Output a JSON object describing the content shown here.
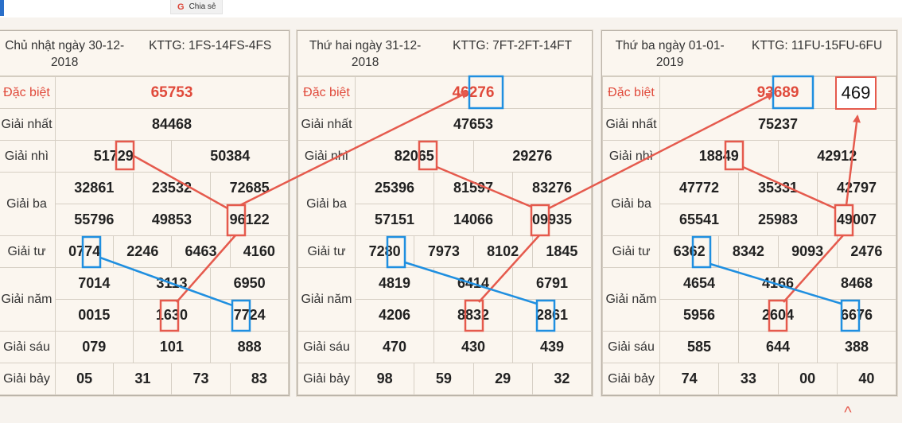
{
  "share": {
    "icon": "G",
    "label": "Chia sẻ"
  },
  "panels": [
    {
      "date": "Chủ nhật ngày 30-12-2018",
      "kttg": "KTTG: 1FS-14FS-4FS",
      "labels": {
        "db": "Đặc biệt",
        "g1": "Giải nhất",
        "g2": "Giải nhì",
        "g3": "Giải ba",
        "g4": "Giải tư",
        "g5": "Giải năm",
        "g6": "Giải sáu",
        "g7": "Giải bảy"
      },
      "db": "65753",
      "g1": "84468",
      "g2": [
        "51729",
        "50384"
      ],
      "g3": [
        "32861",
        "23532",
        "72685",
        "55796",
        "49853",
        "96122"
      ],
      "g4": [
        "0774",
        "2246",
        "6463",
        "4160"
      ],
      "g5": [
        "7014",
        "3113",
        "6950",
        "0015",
        "1630",
        "7724"
      ],
      "g6": [
        "079",
        "101",
        "888"
      ],
      "g7": [
        "05",
        "31",
        "73",
        "83"
      ]
    },
    {
      "date": "Thứ hai ngày 31-12-2018",
      "kttg": "KTTG: 7FT-2FT-14FT",
      "labels": {
        "db": "Đặc biệt",
        "g1": "Giải nhất",
        "g2": "Giải nhì",
        "g3": "Giải ba",
        "g4": "Giải tư",
        "g5": "Giải năm",
        "g6": "Giải sáu",
        "g7": "Giải bảy"
      },
      "db": "46276",
      "g1": "47653",
      "g2": [
        "82065",
        "29276"
      ],
      "g3": [
        "25396",
        "81597",
        "83276",
        "57151",
        "14066",
        "09935"
      ],
      "g4": [
        "7280",
        "7973",
        "8102",
        "1845"
      ],
      "g5": [
        "4819",
        "6414",
        "6791",
        "4206",
        "8832",
        "2861"
      ],
      "g6": [
        "470",
        "430",
        "439"
      ],
      "g7": [
        "98",
        "59",
        "29",
        "32"
      ]
    },
    {
      "date": "Thứ ba ngày 01-01-2019",
      "kttg": "KTTG: 11FU-15FU-6FU",
      "labels": {
        "db": "Đặc biệt",
        "g1": "Giải nhất",
        "g2": "Giải nhì",
        "g3": "Giải ba",
        "g4": "Giải tư",
        "g5": "Giải năm",
        "g6": "Giải sáu",
        "g7": "Giải bảy"
      },
      "db": "93689",
      "g1": "75237",
      "g2": [
        "18849",
        "42912"
      ],
      "g3": [
        "47772",
        "35331",
        "42797",
        "65541",
        "25983",
        "49007"
      ],
      "g4": [
        "6362",
        "8342",
        "9093",
        "2476"
      ],
      "g5": [
        "4654",
        "4166",
        "8468",
        "5956",
        "2604",
        "6676"
      ],
      "g6": [
        "585",
        "644",
        "388"
      ],
      "g7": [
        "74",
        "33",
        "00",
        "40"
      ]
    }
  ],
  "annotation": {
    "prediction": "469"
  },
  "colors": {
    "red": "#e55a4d",
    "blue": "#1f8fe0",
    "special_text": "#e04a3b"
  },
  "icons": {
    "scroll_up": "chevron-up-icon"
  }
}
